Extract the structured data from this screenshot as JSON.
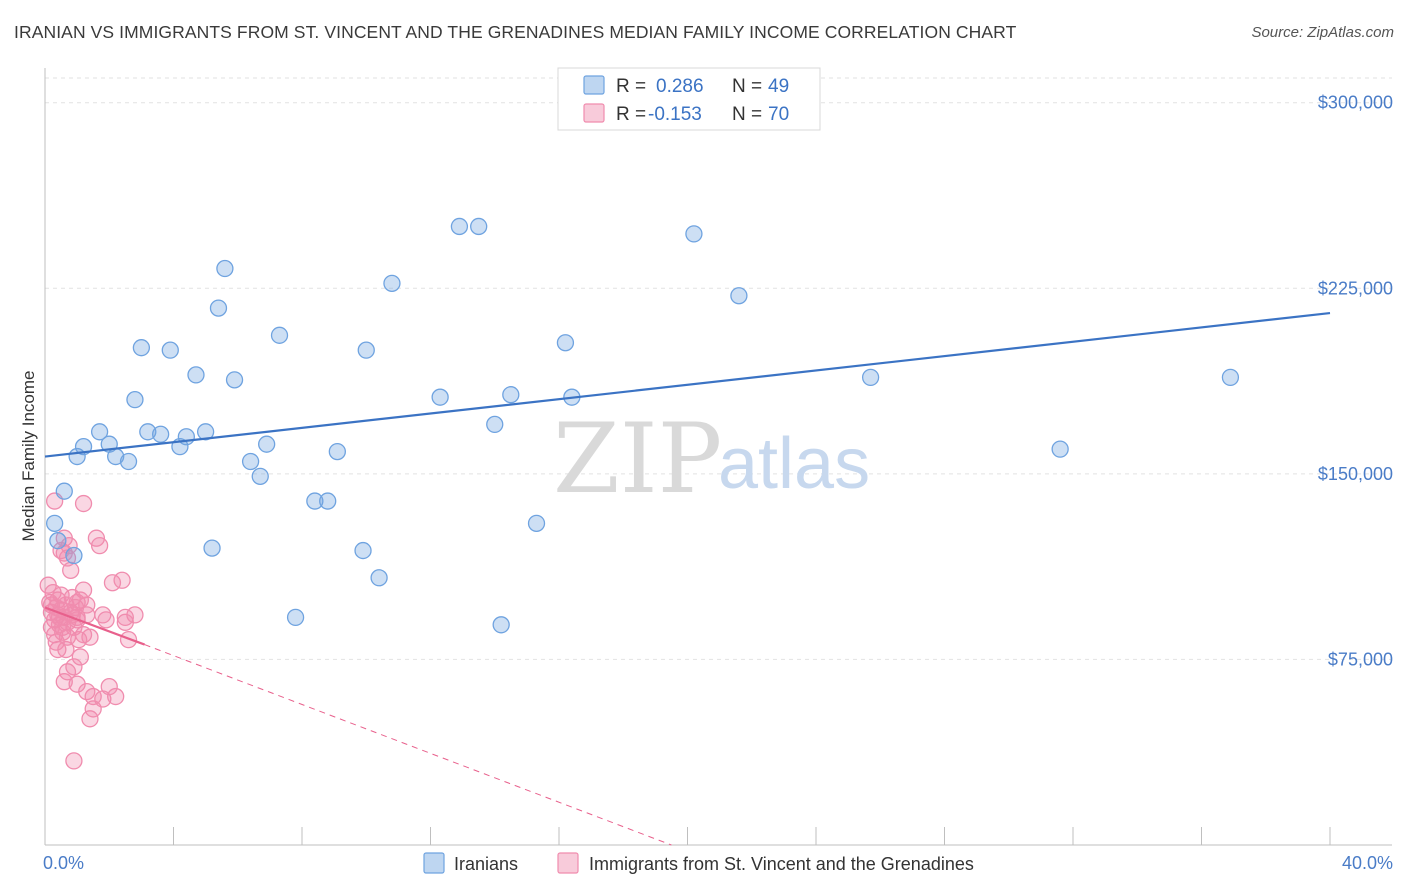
{
  "title": "IRANIAN VS IMMIGRANTS FROM ST. VINCENT AND THE GRENADINES MEDIAN FAMILY INCOME CORRELATION CHART",
  "source": "Source: ZipAtlas.com",
  "watermark": {
    "zip": "ZIP",
    "atlas": "atlas"
  },
  "colors": {
    "iranians": "#6fa3e0",
    "iranians_line": "#3b73c4",
    "immigrants": "#f08cae",
    "immigrants_line": "#e8608c",
    "tick_text": "#4a7cc7",
    "grid": "#e2e2e2"
  },
  "legend": {
    "r_label": "R =",
    "n_label": "N =",
    "iranians": {
      "r": "0.286",
      "n": "49"
    },
    "immigrants": {
      "r": "-0.153",
      "n": "70"
    }
  },
  "chart_data": {
    "type": "scatter",
    "title": "IRANIAN VS IMMIGRANTS FROM ST. VINCENT AND THE GRENADINES MEDIAN FAMILY INCOME CORRELATION CHART",
    "xlabel": "",
    "ylabel": "Median Family Income",
    "xlim": [
      0,
      40
    ],
    "ylim": [
      0,
      310000
    ],
    "x_tick_labels": [
      "0.0%",
      "40.0%"
    ],
    "y_ticks": [
      75000,
      150000,
      225000,
      300000
    ],
    "y_tick_labels": [
      "$75,000",
      "$150,000",
      "$225,000",
      "$300,000"
    ],
    "grid": true,
    "legend_position": "top-center",
    "series": [
      {
        "name": "Iranians",
        "points": [
          [
            0.4,
            123000
          ],
          [
            0.6,
            143000
          ],
          [
            0.9,
            117000
          ],
          [
            1.0,
            157000
          ],
          [
            1.2,
            161000
          ],
          [
            1.7,
            167000
          ],
          [
            2.0,
            162000
          ],
          [
            2.2,
            157000
          ],
          [
            2.6,
            155000
          ],
          [
            2.8,
            180000
          ],
          [
            3.0,
            201000
          ],
          [
            3.2,
            167000
          ],
          [
            3.6,
            166000
          ],
          [
            3.9,
            200000
          ],
          [
            4.2,
            161000
          ],
          [
            4.4,
            165000
          ],
          [
            4.7,
            190000
          ],
          [
            5.0,
            167000
          ],
          [
            5.2,
            120000
          ],
          [
            5.4,
            217000
          ],
          [
            5.6,
            233000
          ],
          [
            5.9,
            188000
          ],
          [
            6.4,
            155000
          ],
          [
            6.7,
            149000
          ],
          [
            6.9,
            162000
          ],
          [
            7.3,
            206000
          ],
          [
            7.8,
            92000
          ],
          [
            8.4,
            139000
          ],
          [
            8.8,
            139000
          ],
          [
            9.1,
            159000
          ],
          [
            9.9,
            119000
          ],
          [
            10.0,
            200000
          ],
          [
            10.4,
            108000
          ],
          [
            10.8,
            227000
          ],
          [
            12.3,
            181000
          ],
          [
            12.9,
            250000
          ],
          [
            13.5,
            250000
          ],
          [
            14.0,
            170000
          ],
          [
            14.2,
            89000
          ],
          [
            14.5,
            182000
          ],
          [
            15.3,
            130000
          ],
          [
            16.2,
            203000
          ],
          [
            16.4,
            181000
          ],
          [
            20.2,
            247000
          ],
          [
            21.6,
            222000
          ],
          [
            25.7,
            189000
          ],
          [
            31.6,
            160000
          ],
          [
            36.9,
            189000
          ],
          [
            0.3,
            130000
          ]
        ]
      },
      {
        "name": "Immigrants from St. Vincent and the Grenadines",
        "points": [
          [
            0.1,
            105000
          ],
          [
            0.15,
            98000
          ],
          [
            0.2,
            94000
          ],
          [
            0.2,
            88000
          ],
          [
            0.25,
            102000
          ],
          [
            0.3,
            91000
          ],
          [
            0.3,
            85000
          ],
          [
            0.35,
            96000
          ],
          [
            0.35,
            82000
          ],
          [
            0.4,
            93000
          ],
          [
            0.4,
            99000
          ],
          [
            0.45,
            89000
          ],
          [
            0.5,
            101000
          ],
          [
            0.5,
            95000
          ],
          [
            0.55,
            86000
          ],
          [
            0.6,
            92000
          ],
          [
            0.6,
            118000
          ],
          [
            0.65,
            97000
          ],
          [
            0.7,
            90000
          ],
          [
            0.7,
            84000
          ],
          [
            0.75,
            121000
          ],
          [
            0.8,
            94000
          ],
          [
            0.85,
            100000
          ],
          [
            0.9,
            88000
          ],
          [
            0.95,
            96000
          ],
          [
            1.0,
            91000
          ],
          [
            1.05,
            83000
          ],
          [
            1.1,
            99000
          ],
          [
            1.2,
            85000
          ],
          [
            1.3,
            93000
          ],
          [
            0.3,
            139000
          ],
          [
            0.5,
            119000
          ],
          [
            0.6,
            124000
          ],
          [
            0.7,
            116000
          ],
          [
            0.8,
            111000
          ],
          [
            1.0,
            92000
          ],
          [
            1.2,
            103000
          ],
          [
            1.3,
            97000
          ],
          [
            1.4,
            84000
          ],
          [
            1.5,
            60000
          ],
          [
            1.6,
            124000
          ],
          [
            1.7,
            121000
          ],
          [
            1.8,
            93000
          ],
          [
            1.9,
            91000
          ],
          [
            2.0,
            64000
          ],
          [
            2.1,
            106000
          ],
          [
            2.2,
            60000
          ],
          [
            2.4,
            107000
          ],
          [
            2.5,
            90000
          ],
          [
            2.6,
            83000
          ],
          [
            0.4,
            79000
          ],
          [
            0.6,
            66000
          ],
          [
            0.7,
            70000
          ],
          [
            0.9,
            72000
          ],
          [
            1.0,
            65000
          ],
          [
            1.1,
            76000
          ],
          [
            1.3,
            62000
          ],
          [
            1.4,
            51000
          ],
          [
            1.5,
            55000
          ],
          [
            1.8,
            59000
          ],
          [
            2.5,
            92000
          ],
          [
            2.8,
            93000
          ],
          [
            0.9,
            34000
          ],
          [
            1.0,
            98000
          ],
          [
            1.2,
            138000
          ],
          [
            0.2,
            97000
          ],
          [
            0.45,
            92000
          ],
          [
            0.55,
            88000
          ],
          [
            0.65,
            79000
          ],
          [
            0.85,
            93000
          ]
        ]
      }
    ],
    "trendlines": [
      {
        "series": "Iranians",
        "x": [
          0,
          40
        ],
        "y": [
          157000,
          215000
        ],
        "style": "solid"
      },
      {
        "series": "Immigrants from St. Vincent and the Grenadines",
        "x": [
          0,
          3.1
        ],
        "y": [
          96000,
          81000
        ],
        "style": "solid"
      },
      {
        "series": "Immigrants from St. Vincent and the Grenadines",
        "x": [
          3.1,
          19.5
        ],
        "y": [
          81000,
          0
        ],
        "style": "dashed"
      }
    ]
  },
  "bottom_legend": [
    {
      "label": "Iranians"
    },
    {
      "label": "Immigrants from St. Vincent and the Grenadines"
    }
  ]
}
